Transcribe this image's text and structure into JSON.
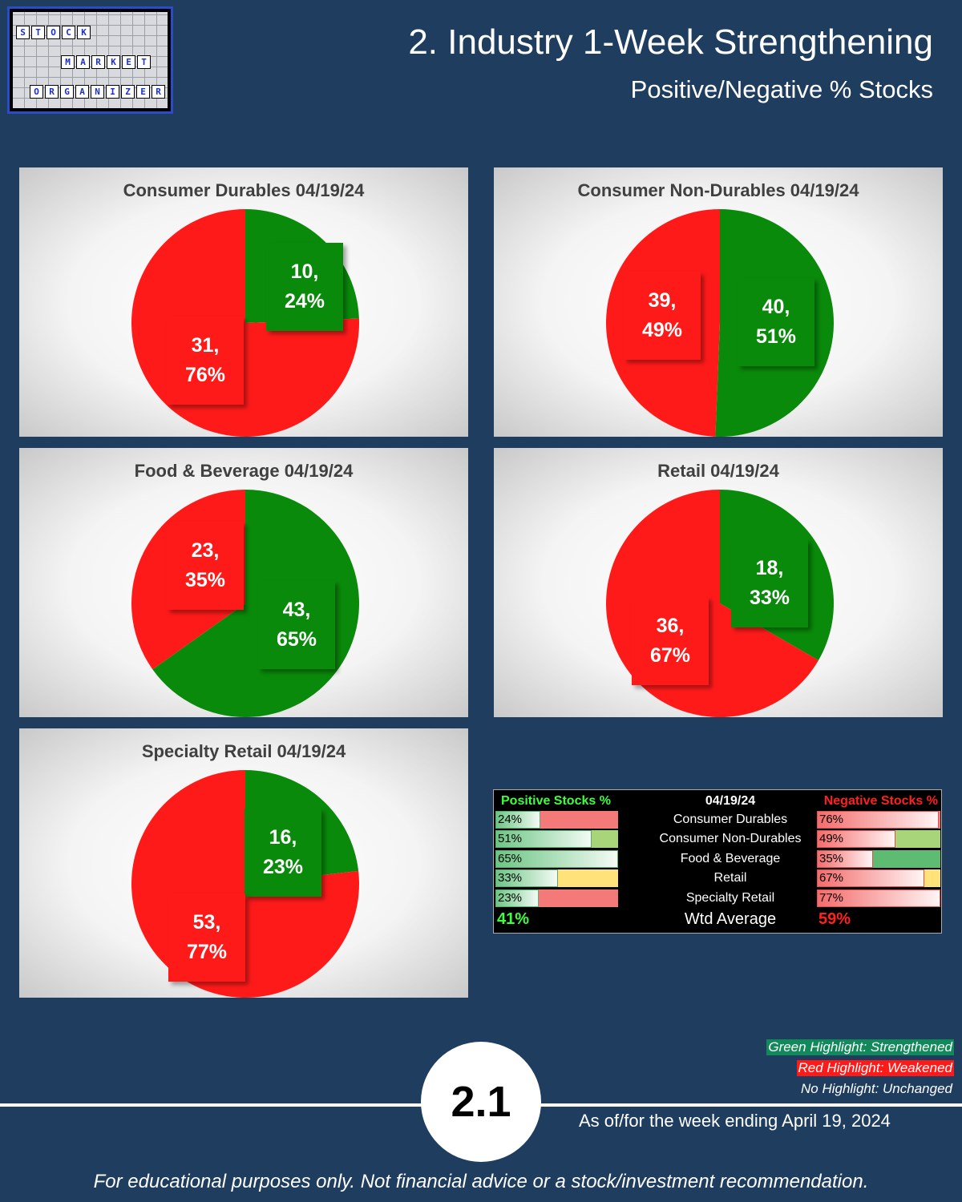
{
  "header": {
    "title": "2. Industry 1-Week Strengthening",
    "subtitle": "Positive/Negative % Stocks"
  },
  "logo": {
    "row1": [
      "S",
      "T",
      "O",
      "C",
      "K"
    ],
    "row2": [
      "M",
      "A",
      "R",
      "K",
      "E",
      "T"
    ],
    "row3": [
      "O",
      "R",
      "G",
      "A",
      "N",
      "I",
      "Z",
      "E",
      "R"
    ]
  },
  "colors": {
    "positive": "#0a8a0a",
    "negative": "#ff1a1a",
    "background": "#1e3d5f"
  },
  "chart_data": [
    {
      "type": "pie",
      "title": "Consumer Durables 04/19/24",
      "slices": [
        {
          "count": 10,
          "percent": 24,
          "label_count": "10,",
          "label_percent": "24%",
          "color": "#0a8a0a"
        },
        {
          "count": 31,
          "percent": 76,
          "label_count": "31,",
          "label_percent": "76%",
          "color": "#ff1a1a"
        }
      ]
    },
    {
      "type": "pie",
      "title": "Consumer Non-Durables 04/19/24",
      "slices": [
        {
          "count": 40,
          "percent": 51,
          "label_count": "40,",
          "label_percent": "51%",
          "color": "#0a8a0a"
        },
        {
          "count": 39,
          "percent": 49,
          "label_count": "39,",
          "label_percent": "49%",
          "color": "#ff1a1a"
        }
      ]
    },
    {
      "type": "pie",
      "title": "Food & Beverage 04/19/24",
      "slices": [
        {
          "count": 43,
          "percent": 65,
          "label_count": "43,",
          "label_percent": "65%",
          "color": "#0a8a0a"
        },
        {
          "count": 23,
          "percent": 35,
          "label_count": "23,",
          "label_percent": "35%",
          "color": "#ff1a1a"
        }
      ]
    },
    {
      "type": "pie",
      "title": "Retail 04/19/24",
      "slices": [
        {
          "count": 18,
          "percent": 33,
          "label_count": "18,",
          "label_percent": "33%",
          "color": "#0a8a0a"
        },
        {
          "count": 36,
          "percent": 67,
          "label_count": "36,",
          "label_percent": "67%",
          "color": "#ff1a1a"
        }
      ]
    },
    {
      "type": "pie",
      "title": "Specialty Retail 04/19/24",
      "slices": [
        {
          "count": 16,
          "percent": 23,
          "label_count": "16,",
          "label_percent": "23%",
          "color": "#0a8a0a"
        },
        {
          "count": 53,
          "percent": 77,
          "label_count": "53,",
          "label_percent": "77%",
          "color": "#ff1a1a"
        }
      ]
    },
    {
      "type": "table",
      "headers": {
        "positive": "Positive Stocks %",
        "date": "04/19/24",
        "negative": "Negative Stocks %"
      },
      "rows": [
        {
          "name": "Consumer Durables",
          "positive": "24%",
          "negative": "76%",
          "pos_value": 24,
          "neg_value": 76,
          "highlight": "red"
        },
        {
          "name": "Consumer Non-Durables",
          "positive": "51%",
          "negative": "49%",
          "pos_value": 51,
          "neg_value": 49,
          "highlight": "light-green"
        },
        {
          "name": "Food & Beverage",
          "positive": "65%",
          "negative": "35%",
          "pos_value": 65,
          "neg_value": 35,
          "highlight": "green"
        },
        {
          "name": "Retail",
          "positive": "33%",
          "negative": "67%",
          "pos_value": 33,
          "neg_value": 67,
          "highlight": "yellow"
        },
        {
          "name": "Specialty Retail",
          "positive": "23%",
          "negative": "77%",
          "pos_value": 23,
          "neg_value": 77,
          "highlight": "red"
        }
      ],
      "average": {
        "positive": "41%",
        "label": "Wtd Average",
        "negative": "59%"
      }
    }
  ],
  "legend": {
    "green": "Green Highlight: Strengthened",
    "red": "Red Highlight: Weakened",
    "none": "No Highlight: Unchanged"
  },
  "footer": {
    "badge": "2.1",
    "as_of": "As of/for the week ending April 19, 2024",
    "disclaimer": "For educational purposes only. Not financial advice or a stock/investment recommendation."
  }
}
